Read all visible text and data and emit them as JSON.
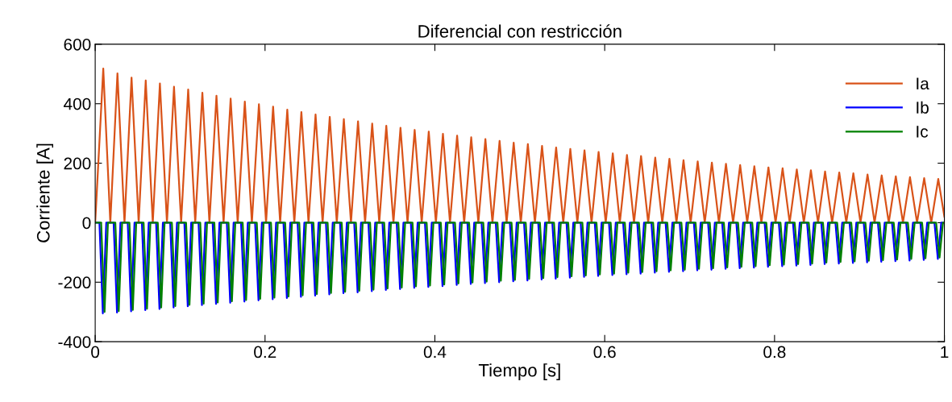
{
  "chart_data": {
    "type": "line",
    "title": "Diferencial con restricción",
    "xlabel": "Tiempo [s]",
    "ylabel": "Corriente [A]",
    "xlim": [
      0,
      1
    ],
    "xticks": [
      0,
      0.2,
      0.4,
      0.6,
      0.8,
      1
    ],
    "ylim": [
      -400,
      600
    ],
    "yticks": [
      -400,
      -200,
      0,
      200,
      400,
      600
    ],
    "grid": false,
    "legend": "top right",
    "line_style": "solid",
    "marker": "none",
    "series": [
      {
        "name": "Ia",
        "color": "#d95319",
        "x": [
          0,
          0.0095,
          0.0178,
          0.0262,
          0.0345,
          0.0428,
          0.0512,
          0.0595,
          0.0678,
          0.0762,
          0.0845,
          0.0928,
          0.1012,
          0.1095,
          0.1178,
          0.1262,
          0.1345,
          0.1428,
          0.1512,
          0.1595,
          0.1678,
          0.1762,
          0.1845,
          0.1928,
          0.2012,
          0.2095,
          0.2178,
          0.2262,
          0.2345,
          0.2428,
          0.2512,
          0.2595,
          0.2678,
          0.2762,
          0.2845,
          0.2928,
          0.3012,
          0.3095,
          0.3178,
          0.3262,
          0.3345,
          0.3428,
          0.3512,
          0.3595,
          0.3678,
          0.3762,
          0.3845,
          0.3928,
          0.4012,
          0.4095,
          0.4178,
          0.4262,
          0.4345,
          0.4428,
          0.4512,
          0.4595,
          0.4678,
          0.4762,
          0.4845,
          0.4928,
          0.5012,
          0.5095,
          0.5178,
          0.5262,
          0.5345,
          0.5428,
          0.5512,
          0.5595,
          0.5678,
          0.5762,
          0.5845,
          0.5928,
          0.6012,
          0.6095,
          0.6178,
          0.6262,
          0.6345,
          0.6428,
          0.6512,
          0.6595,
          0.6678,
          0.6762,
          0.6845,
          0.6928,
          0.7012,
          0.7095,
          0.7178,
          0.7262,
          0.7345,
          0.7428,
          0.7512,
          0.7595,
          0.7678,
          0.7762,
          0.7845,
          0.7928,
          0.8012,
          0.8095,
          0.8178,
          0.8262,
          0.8345,
          0.8428,
          0.8512,
          0.8595,
          0.8678,
          0.8762,
          0.8845,
          0.8928,
          0.9012,
          0.9095,
          0.9178,
          0.9262,
          0.9345,
          0.9428,
          0.9512,
          0.9595,
          0.9678,
          0.9762,
          0.9845,
          0.9928,
          1.0
        ],
        "values": [
          0,
          518,
          0,
          502,
          0,
          488,
          0,
          478,
          0,
          468,
          0,
          457,
          0,
          448,
          0,
          437,
          0,
          427,
          0,
          417,
          0,
          407,
          0,
          398,
          0,
          390,
          0,
          380,
          0,
          372,
          0,
          364,
          0,
          356,
          0,
          348,
          0,
          341,
          0,
          333,
          0,
          326,
          0,
          319,
          0,
          312,
          0,
          306,
          0,
          299,
          0,
          293,
          0,
          287,
          0,
          281,
          0,
          275,
          0,
          269,
          0,
          264,
          0,
          258,
          0,
          253,
          0,
          248,
          0,
          243,
          0,
          238,
          0,
          233,
          0,
          228,
          0,
          224,
          0,
          219,
          0,
          215,
          0,
          210,
          0,
          206,
          0,
          202,
          0,
          198,
          0,
          194,
          0,
          190,
          0,
          186,
          0,
          183,
          0,
          179,
          0,
          176,
          0,
          172,
          0,
          169,
          0,
          166,
          0,
          162,
          0,
          159,
          0,
          156,
          0,
          153,
          0,
          150,
          0,
          147,
          20
        ]
      },
      {
        "name": "Ib",
        "color": "#0000ff",
        "x": [
          0,
          0.005,
          0.009,
          0.013,
          0.0217,
          0.0257,
          0.0297,
          0.0383,
          0.0423,
          0.0463,
          0.055,
          0.059,
          0.063,
          0.0717,
          0.0757,
          0.0797,
          0.0883,
          0.0923,
          0.0963,
          0.105,
          0.109,
          0.113,
          0.1217,
          0.1257,
          0.1297,
          0.1383,
          0.1423,
          0.1463,
          0.155,
          0.159,
          0.163,
          0.1717,
          0.1757,
          0.1797,
          0.1883,
          0.1923,
          0.1963,
          0.205,
          0.209,
          0.213,
          0.2217,
          0.2257,
          0.2297,
          0.2383,
          0.2423,
          0.2463,
          0.255,
          0.259,
          0.263,
          0.2717,
          0.2757,
          0.2797,
          0.2883,
          0.2923,
          0.2963,
          0.305,
          0.309,
          0.313,
          0.3217,
          0.3257,
          0.3297,
          0.3383,
          0.3423,
          0.3463,
          0.355,
          0.359,
          0.363,
          0.3717,
          0.3757,
          0.3797,
          0.3883,
          0.3923,
          0.3963,
          0.405,
          0.409,
          0.413,
          0.4217,
          0.4257,
          0.4297,
          0.4383,
          0.4423,
          0.4463,
          0.455,
          0.459,
          0.463,
          0.4717,
          0.4757,
          0.4797,
          0.4883,
          0.4923,
          0.4963,
          0.505,
          0.509,
          0.513,
          0.5217,
          0.5257,
          0.5297,
          0.5383,
          0.5423,
          0.5463,
          0.555,
          0.559,
          0.563,
          0.5717,
          0.5757,
          0.5797,
          0.5883,
          0.5923,
          0.5963,
          0.605,
          0.609,
          0.613,
          0.6217,
          0.6257,
          0.6297,
          0.6383,
          0.6423,
          0.6463,
          0.655,
          0.659,
          0.663,
          0.6717,
          0.6757,
          0.6797,
          0.6883,
          0.6923,
          0.6963,
          0.705,
          0.709,
          0.713,
          0.7217,
          0.7257,
          0.7297,
          0.7383,
          0.7423,
          0.7463,
          0.755,
          0.759,
          0.763,
          0.7717,
          0.7757,
          0.7797,
          0.7883,
          0.7923,
          0.7963,
          0.805,
          0.809,
          0.813,
          0.8217,
          0.8257,
          0.8297,
          0.8383,
          0.8423,
          0.8463,
          0.855,
          0.859,
          0.863,
          0.8717,
          0.8757,
          0.8797,
          0.8883,
          0.8923,
          0.8963,
          0.905,
          0.909,
          0.913,
          0.9217,
          0.9257,
          0.9297,
          0.9383,
          0.9423,
          0.9463,
          0.955,
          0.959,
          0.963,
          0.9717,
          0.9757,
          0.9797,
          0.9883,
          0.9923,
          0.9963,
          1.0
        ],
        "values": [
          0,
          0,
          -305,
          0,
          0,
          -302,
          0,
          0,
          -298,
          0,
          0,
          -294,
          0,
          0,
          -290,
          0,
          0,
          -285,
          0,
          0,
          -281,
          0,
          0,
          -277,
          0,
          0,
          -273,
          0,
          0,
          -269,
          0,
          0,
          -265,
          0,
          0,
          -261,
          0,
          0,
          -257,
          0,
          0,
          -253,
          0,
          0,
          -249,
          0,
          0,
          -245,
          0,
          0,
          -241,
          0,
          0,
          -237,
          0,
          0,
          -234,
          0,
          0,
          -230,
          0,
          0,
          -226,
          0,
          0,
          -223,
          0,
          0,
          -219,
          0,
          0,
          -216,
          0,
          0,
          -213,
          0,
          0,
          -209,
          0,
          0,
          -206,
          0,
          0,
          -203,
          0,
          0,
          -200,
          0,
          0,
          -197,
          0,
          0,
          -194,
          0,
          0,
          -191,
          0,
          0,
          -188,
          0,
          0,
          -185,
          0,
          0,
          -182,
          0,
          0,
          -179,
          0,
          0,
          -176,
          0,
          0,
          -173,
          0,
          0,
          -171,
          0,
          0,
          -168,
          0,
          0,
          -165,
          0,
          0,
          -163,
          0,
          0,
          -160,
          0,
          0,
          -158,
          0,
          0,
          -155,
          0,
          0,
          -153,
          0,
          0,
          -151,
          0,
          0,
          -148,
          0,
          0,
          -146,
          0,
          0,
          -144,
          0,
          0,
          -142,
          0,
          0,
          -139,
          0,
          0,
          -137,
          0,
          0,
          -135,
          0,
          0,
          -133,
          0,
          0,
          -131,
          0,
          0,
          -129,
          0,
          0,
          -127,
          0,
          0,
          -125,
          0,
          0,
          -122,
          0,
          0
        ]
      },
      {
        "name": "Ic",
        "color": "#008000",
        "x": [
          0,
          0.007,
          0.011,
          0.015,
          0.0237,
          0.0277,
          0.0317,
          0.0403,
          0.0443,
          0.0483,
          0.057,
          0.061,
          0.065,
          0.0737,
          0.0777,
          0.0817,
          0.0903,
          0.0943,
          0.0983,
          0.107,
          0.111,
          0.115,
          0.1237,
          0.1277,
          0.1317,
          0.1403,
          0.1443,
          0.1483,
          0.157,
          0.161,
          0.165,
          0.1737,
          0.1777,
          0.1817,
          0.1903,
          0.1943,
          0.1983,
          0.207,
          0.211,
          0.215,
          0.2237,
          0.2277,
          0.2317,
          0.2403,
          0.2443,
          0.2483,
          0.257,
          0.261,
          0.265,
          0.2737,
          0.2777,
          0.2817,
          0.2903,
          0.2943,
          0.2983,
          0.307,
          0.311,
          0.315,
          0.3237,
          0.3277,
          0.3317,
          0.3403,
          0.3443,
          0.3483,
          0.357,
          0.361,
          0.365,
          0.3737,
          0.3777,
          0.3817,
          0.3903,
          0.3943,
          0.3983,
          0.407,
          0.411,
          0.415,
          0.4237,
          0.4277,
          0.4317,
          0.4403,
          0.4443,
          0.4483,
          0.457,
          0.461,
          0.465,
          0.4737,
          0.4777,
          0.4817,
          0.4903,
          0.4943,
          0.4983,
          0.507,
          0.511,
          0.515,
          0.5237,
          0.5277,
          0.5317,
          0.5403,
          0.5443,
          0.5483,
          0.557,
          0.561,
          0.565,
          0.5737,
          0.5777,
          0.5817,
          0.5903,
          0.5943,
          0.5983,
          0.607,
          0.611,
          0.615,
          0.6237,
          0.6277,
          0.6317,
          0.6403,
          0.6443,
          0.6483,
          0.657,
          0.661,
          0.665,
          0.6737,
          0.6777,
          0.6817,
          0.6903,
          0.6943,
          0.6983,
          0.707,
          0.711,
          0.715,
          0.7237,
          0.7277,
          0.7317,
          0.7403,
          0.7443,
          0.7483,
          0.757,
          0.761,
          0.765,
          0.7737,
          0.7777,
          0.7817,
          0.7903,
          0.7943,
          0.7983,
          0.807,
          0.811,
          0.815,
          0.8237,
          0.8277,
          0.8317,
          0.8403,
          0.8443,
          0.8483,
          0.857,
          0.861,
          0.865,
          0.8737,
          0.8777,
          0.8817,
          0.8903,
          0.8943,
          0.8983,
          0.907,
          0.911,
          0.915,
          0.9237,
          0.9277,
          0.9317,
          0.9403,
          0.9443,
          0.9483,
          0.957,
          0.961,
          0.965,
          0.9737,
          0.9777,
          0.9817,
          0.9903,
          0.9943,
          0.9983,
          1.0
        ],
        "values": [
          0,
          0,
          -300,
          0,
          0,
          -297,
          0,
          0,
          -293,
          0,
          0,
          -289,
          0,
          0,
          -285,
          0,
          0,
          -280,
          0,
          0,
          -276,
          0,
          0,
          -272,
          0,
          0,
          -268,
          0,
          0,
          -264,
          0,
          0,
          -260,
          0,
          0,
          -256,
          0,
          0,
          -252,
          0,
          0,
          -248,
          0,
          0,
          -244,
          0,
          0,
          -240,
          0,
          0,
          -236,
          0,
          0,
          -232,
          0,
          0,
          -229,
          0,
          0,
          -225,
          0,
          0,
          -221,
          0,
          0,
          -218,
          0,
          0,
          -214,
          0,
          0,
          -211,
          0,
          0,
          -208,
          0,
          0,
          -204,
          0,
          0,
          -201,
          0,
          0,
          -198,
          0,
          0,
          -195,
          0,
          0,
          -192,
          0,
          0,
          -189,
          0,
          0,
          -186,
          0,
          0,
          -183,
          0,
          0,
          -180,
          0,
          0,
          -177,
          0,
          0,
          -174,
          0,
          0,
          -171,
          0,
          0,
          -168,
          0,
          0,
          -166,
          0,
          0,
          -163,
          0,
          0,
          -160,
          0,
          0,
          -158,
          0,
          0,
          -155,
          0,
          0,
          -153,
          0,
          0,
          -150,
          0,
          0,
          -148,
          0,
          0,
          -146,
          0,
          0,
          -143,
          0,
          0,
          -141,
          0,
          0,
          -139,
          0,
          0,
          -137,
          0,
          0,
          -134,
          0,
          0,
          -132,
          0,
          0,
          -130,
          0,
          0,
          -128,
          0,
          0,
          -126,
          0,
          0,
          -124,
          0,
          0,
          -122,
          0,
          0,
          -120,
          0,
          0,
          -117,
          0,
          0
        ]
      }
    ]
  }
}
